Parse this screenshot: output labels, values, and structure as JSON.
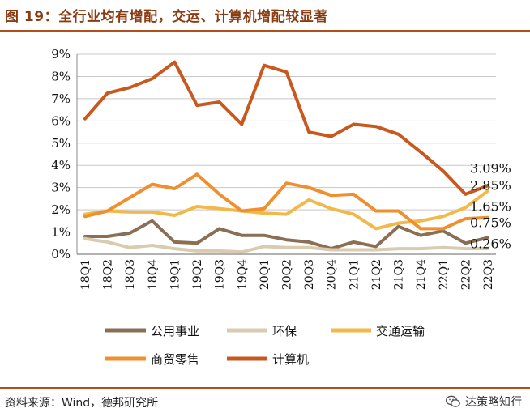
{
  "header": {
    "title": "图 19：全行业均有增配，交运、计算机增配较显著"
  },
  "footer": {
    "source": "资料来源：Wind，德邦研究所",
    "brand": "达策略知行"
  },
  "chart_data": {
    "type": "line",
    "title": "图 19：全行业均有增配，交运、计算机增配较显著",
    "xlabel": "",
    "ylabel": "",
    "ylim": [
      0,
      9
    ],
    "yticks": [
      "0%",
      "1%",
      "2%",
      "3%",
      "4%",
      "5%",
      "6%",
      "7%",
      "8%",
      "9%"
    ],
    "grid": "horizontal",
    "legend_position": "bottom",
    "categories": [
      "18Q1",
      "18Q2",
      "18Q3",
      "18Q4",
      "19Q1",
      "19Q2",
      "19Q3",
      "19Q4",
      "20Q1",
      "20Q2",
      "20Q3",
      "20Q4",
      "21Q1",
      "21Q2",
      "21Q3",
      "21Q4",
      "22Q1",
      "22Q2",
      "22Q3"
    ],
    "series": [
      {
        "name": "公用事业",
        "color": "#8b6f55",
        "values": [
          0.8,
          0.8,
          0.95,
          1.5,
          0.55,
          0.5,
          1.15,
          0.85,
          0.85,
          0.65,
          0.55,
          0.25,
          0.55,
          0.35,
          1.25,
          0.85,
          1.05,
          0.5,
          0.75
        ]
      },
      {
        "name": "环保",
        "color": "#d9cbb0",
        "values": [
          0.7,
          0.55,
          0.3,
          0.4,
          0.25,
          0.15,
          0.15,
          0.1,
          0.35,
          0.3,
          0.3,
          0.2,
          0.2,
          0.2,
          0.25,
          0.25,
          0.3,
          0.25,
          0.26
        ]
      },
      {
        "name": "交通运输",
        "color": "#f2b94a",
        "values": [
          1.8,
          1.95,
          1.9,
          1.9,
          1.75,
          2.15,
          2.05,
          1.95,
          1.85,
          1.8,
          2.45,
          2.05,
          1.8,
          1.15,
          1.4,
          1.5,
          1.7,
          2.1,
          2.85
        ]
      },
      {
        "name": "商贸零售",
        "color": "#ef8f2e",
        "values": [
          1.7,
          1.95,
          2.55,
          3.15,
          2.95,
          3.6,
          2.7,
          1.95,
          2.05,
          3.2,
          3.0,
          2.65,
          2.7,
          1.95,
          1.95,
          1.15,
          1.15,
          1.6,
          1.65
        ]
      },
      {
        "name": "计算机",
        "color": "#c9581f",
        "values": [
          6.1,
          7.25,
          7.5,
          7.9,
          8.65,
          6.7,
          6.85,
          5.85,
          8.5,
          8.2,
          5.5,
          5.3,
          5.85,
          5.75,
          5.4,
          4.6,
          3.75,
          2.7,
          3.09
        ]
      }
    ],
    "annotations": [
      "3.09%",
      "2.85%",
      "1.65%",
      "0.75%",
      "0.26%"
    ]
  }
}
